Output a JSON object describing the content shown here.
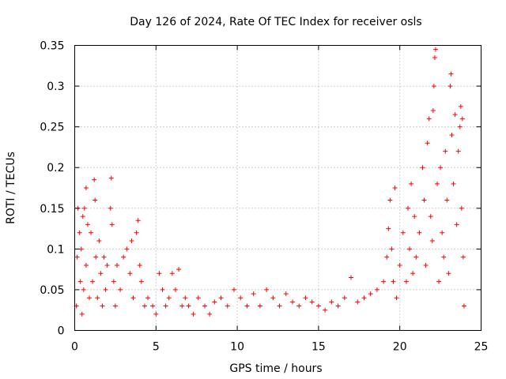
{
  "chart_data": {
    "type": "scatter",
    "title": "Day 126 of 2024, Rate Of TEC Index for receiver osls",
    "xlabel": "GPS time / hours",
    "ylabel": "ROTI / TECUs",
    "xlim": [
      0,
      25
    ],
    "ylim": [
      0,
      0.35
    ],
    "xticks": [
      0,
      5,
      10,
      15,
      20,
      25
    ],
    "xtick_labels": [
      "0",
      "5",
      "10",
      "15",
      "20",
      "25"
    ],
    "yticks": [
      0,
      0.05,
      0.1,
      0.15,
      0.2,
      0.25,
      0.3,
      0.35
    ],
    "ytick_labels": [
      "0",
      "0.05",
      "0.1",
      "0.15",
      "0.2",
      "0.25",
      "0.3",
      "0.35"
    ],
    "grid": true,
    "marker": "+",
    "color": "#ff0000",
    "series": [
      {
        "name": "ROTI",
        "points": [
          [
            0.1,
            0.03
          ],
          [
            0.15,
            0.09
          ],
          [
            0.2,
            0.15
          ],
          [
            0.3,
            0.12
          ],
          [
            0.35,
            0.06
          ],
          [
            0.4,
            0.1
          ],
          [
            0.45,
            0.02
          ],
          [
            0.5,
            0.14
          ],
          [
            0.55,
            0.05
          ],
          [
            0.6,
            0.15
          ],
          [
            0.7,
            0.08
          ],
          [
            0.8,
            0.13
          ],
          [
            0.9,
            0.04
          ],
          [
            1.0,
            0.12
          ],
          [
            1.1,
            0.06
          ],
          [
            1.2,
            0.185
          ],
          [
            1.25,
            0.16
          ],
          [
            1.3,
            0.09
          ],
          [
            1.4,
            0.04
          ],
          [
            0.7,
            0.175
          ],
          [
            1.5,
            0.11
          ],
          [
            1.6,
            0.07
          ],
          [
            1.7,
            0.03
          ],
          [
            1.8,
            0.09
          ],
          [
            1.9,
            0.05
          ],
          [
            2.0,
            0.08
          ],
          [
            2.2,
            0.15
          ],
          [
            2.25,
            0.187
          ],
          [
            2.3,
            0.13
          ],
          [
            2.4,
            0.06
          ],
          [
            2.5,
            0.03
          ],
          [
            2.6,
            0.08
          ],
          [
            2.8,
            0.05
          ],
          [
            3.0,
            0.09
          ],
          [
            3.2,
            0.1
          ],
          [
            3.4,
            0.07
          ],
          [
            3.5,
            0.11
          ],
          [
            3.6,
            0.04
          ],
          [
            3.8,
            0.12
          ],
          [
            3.9,
            0.135
          ],
          [
            4.0,
            0.08
          ],
          [
            4.1,
            0.06
          ],
          [
            4.3,
            0.03
          ],
          [
            4.5,
            0.04
          ],
          [
            4.8,
            0.03
          ],
          [
            5.0,
            0.02
          ],
          [
            5.2,
            0.07
          ],
          [
            5.4,
            0.05
          ],
          [
            5.6,
            0.03
          ],
          [
            5.8,
            0.04
          ],
          [
            6.0,
            0.07
          ],
          [
            6.2,
            0.05
          ],
          [
            6.4,
            0.075
          ],
          [
            6.6,
            0.03
          ],
          [
            6.8,
            0.04
          ],
          [
            7.0,
            0.03
          ],
          [
            7.3,
            0.02
          ],
          [
            7.6,
            0.04
          ],
          [
            8.0,
            0.03
          ],
          [
            8.3,
            0.02
          ],
          [
            8.6,
            0.035
          ],
          [
            9.0,
            0.04
          ],
          [
            9.4,
            0.03
          ],
          [
            9.8,
            0.05
          ],
          [
            10.2,
            0.04
          ],
          [
            10.6,
            0.03
          ],
          [
            11.0,
            0.045
          ],
          [
            11.4,
            0.03
          ],
          [
            11.8,
            0.05
          ],
          [
            12.2,
            0.04
          ],
          [
            12.6,
            0.03
          ],
          [
            13.0,
            0.045
          ],
          [
            13.4,
            0.035
          ],
          [
            13.8,
            0.03
          ],
          [
            14.2,
            0.04
          ],
          [
            14.6,
            0.035
          ],
          [
            15.0,
            0.03
          ],
          [
            15.4,
            0.025
          ],
          [
            15.8,
            0.035
          ],
          [
            16.2,
            0.03
          ],
          [
            16.6,
            0.04
          ],
          [
            17.0,
            0.065
          ],
          [
            17.4,
            0.035
          ],
          [
            17.8,
            0.04
          ],
          [
            18.2,
            0.045
          ],
          [
            18.6,
            0.05
          ],
          [
            19.0,
            0.06
          ],
          [
            19.2,
            0.09
          ],
          [
            19.3,
            0.125
          ],
          [
            19.4,
            0.16
          ],
          [
            19.5,
            0.1
          ],
          [
            19.6,
            0.06
          ],
          [
            19.7,
            0.175
          ],
          [
            19.8,
            0.04
          ],
          [
            20.0,
            0.08
          ],
          [
            20.2,
            0.12
          ],
          [
            20.4,
            0.06
          ],
          [
            20.5,
            0.15
          ],
          [
            20.6,
            0.1
          ],
          [
            20.7,
            0.18
          ],
          [
            20.8,
            0.07
          ],
          [
            20.9,
            0.14
          ],
          [
            21.0,
            0.09
          ],
          [
            21.2,
            0.12
          ],
          [
            21.4,
            0.2
          ],
          [
            21.5,
            0.16
          ],
          [
            21.6,
            0.08
          ],
          [
            21.7,
            0.23
          ],
          [
            21.8,
            0.26
          ],
          [
            21.9,
            0.14
          ],
          [
            22.0,
            0.11
          ],
          [
            22.05,
            0.27
          ],
          [
            22.1,
            0.3
          ],
          [
            22.15,
            0.335
          ],
          [
            22.2,
            0.345
          ],
          [
            22.3,
            0.18
          ],
          [
            22.4,
            0.06
          ],
          [
            22.5,
            0.2
          ],
          [
            22.6,
            0.12
          ],
          [
            22.7,
            0.09
          ],
          [
            22.8,
            0.22
          ],
          [
            22.9,
            0.16
          ],
          [
            23.0,
            0.07
          ],
          [
            23.1,
            0.3
          ],
          [
            23.15,
            0.315
          ],
          [
            23.2,
            0.24
          ],
          [
            23.3,
            0.18
          ],
          [
            23.4,
            0.265
          ],
          [
            23.5,
            0.13
          ],
          [
            23.6,
            0.22
          ],
          [
            23.7,
            0.25
          ],
          [
            23.75,
            0.275
          ],
          [
            23.8,
            0.15
          ],
          [
            23.85,
            0.26
          ],
          [
            23.9,
            0.09
          ],
          [
            23.95,
            0.03
          ]
        ]
      }
    ]
  }
}
